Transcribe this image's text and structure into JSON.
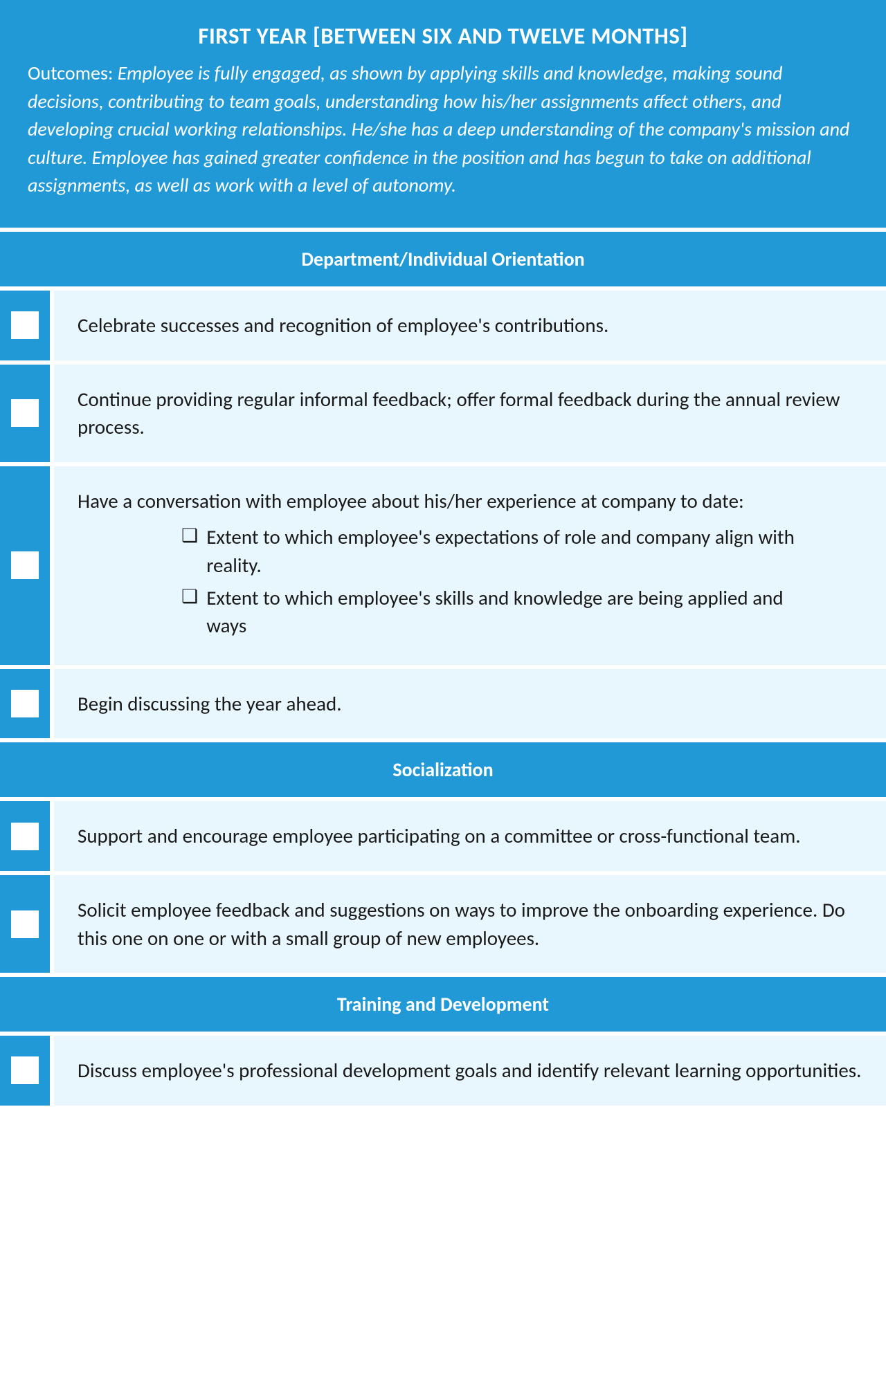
{
  "colors": {
    "primary": "#2199d6",
    "light_bg": "#e8f6fe",
    "text": "#1a1a1a",
    "white": "#ffffff"
  },
  "header": {
    "title": "FIRST YEAR [BETWEEN SIX AND TWELVE MONTHS]",
    "outcomes_label": "Outcomes: ",
    "outcomes_text": "Employee is fully engaged, as shown by applying skills and knowledge, making sound decisions, contributing to team goals, understanding how his/her assignments affect others, and developing crucial working relationships. He/she has a deep understanding of the company's mission and culture. Employee has gained greater confidence in the position and has begun to take on additional assignments, as well as work with a level of autonomy."
  },
  "sections": {
    "orientation": {
      "title": "Department/Individual Orientation",
      "items": {
        "i0": "Celebrate successes and recognition of employee's contributions.",
        "i1": "Continue providing regular informal feedback; offer formal feedback during the annual review process.",
        "i2": {
          "intro": "Have a conversation with employee about his/her experience at company to date:",
          "sub": {
            "s0": "Extent to which employee's expectations of role and company align with reality.",
            "s1": "Extent to which employee's skills and knowledge are being applied and ways"
          }
        },
        "i3": "Begin discussing the year ahead."
      }
    },
    "socialization": {
      "title": "Socialization",
      "items": {
        "i0": "Support and encourage employee participating on a committee or cross-functional team.",
        "i1": "Solicit employee feedback and suggestions on ways to improve the onboarding experience. Do this one on one or with a small group of new employees."
      }
    },
    "training": {
      "title": "Training and Development",
      "items": {
        "i0": "Discuss employee's professional development goals and identify relevant learning opportunities."
      }
    }
  }
}
